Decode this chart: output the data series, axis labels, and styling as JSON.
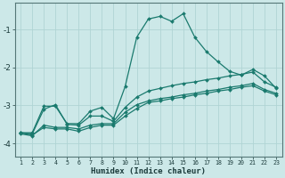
{
  "xlabel": "Humidex (Indice chaleur)",
  "x_values": [
    1,
    2,
    3,
    4,
    5,
    6,
    7,
    8,
    9,
    10,
    11,
    12,
    13,
    14,
    15,
    16,
    17,
    18,
    19,
    20,
    21,
    22,
    23
  ],
  "series": [
    {
      "y": [
        -3.72,
        -3.72,
        -3.02,
        -3.02,
        -3.48,
        -3.48,
        -3.15,
        -3.05,
        -3.35,
        -2.5,
        -1.2,
        -0.72,
        -0.65,
        -0.78,
        -0.58,
        -1.2,
        -1.58,
        -1.85,
        -2.1,
        -2.2,
        -2.05,
        -2.22,
        -2.55
      ]
    },
    {
      "y": [
        -3.72,
        -3.75,
        -3.1,
        -2.98,
        -3.5,
        -3.52,
        -3.28,
        -3.28,
        -3.42,
        -3.05,
        -2.78,
        -2.62,
        -2.55,
        -2.48,
        -2.42,
        -2.38,
        -2.32,
        -2.28,
        -2.22,
        -2.18,
        -2.12,
        -2.38,
        -2.52
      ]
    },
    {
      "y": [
        -3.75,
        -3.8,
        -3.52,
        -3.58,
        -3.58,
        -3.62,
        -3.52,
        -3.48,
        -3.48,
        -3.18,
        -2.98,
        -2.88,
        -2.82,
        -2.78,
        -2.72,
        -2.68,
        -2.62,
        -2.58,
        -2.52,
        -2.48,
        -2.42,
        -2.58,
        -2.68
      ]
    },
    {
      "y": [
        -3.72,
        -3.78,
        -3.58,
        -3.62,
        -3.62,
        -3.68,
        -3.58,
        -3.52,
        -3.52,
        -3.28,
        -3.08,
        -2.92,
        -2.88,
        -2.82,
        -2.78,
        -2.72,
        -2.68,
        -2.62,
        -2.58,
        -2.52,
        -2.48,
        -2.62,
        -2.72
      ]
    }
  ],
  "line_color": "#1a7a6e",
  "bg_color": "#cce8e8",
  "grid_color": "#b0d4d4",
  "label_color": "#1a3a3a",
  "ylim": [
    -4.35,
    -0.3
  ],
  "xlim": [
    0.5,
    23.5
  ],
  "yticks": [
    -4,
    -3,
    -2,
    -1
  ],
  "xticks": [
    1,
    2,
    3,
    4,
    5,
    6,
    7,
    8,
    9,
    10,
    11,
    12,
    13,
    14,
    15,
    16,
    17,
    18,
    19,
    20,
    21,
    22,
    23
  ],
  "xlabel_fontsize": 6.5,
  "xtick_fontsize": 4.8,
  "ytick_fontsize": 6.5,
  "markersize": 2.0,
  "linewidth": 0.9
}
